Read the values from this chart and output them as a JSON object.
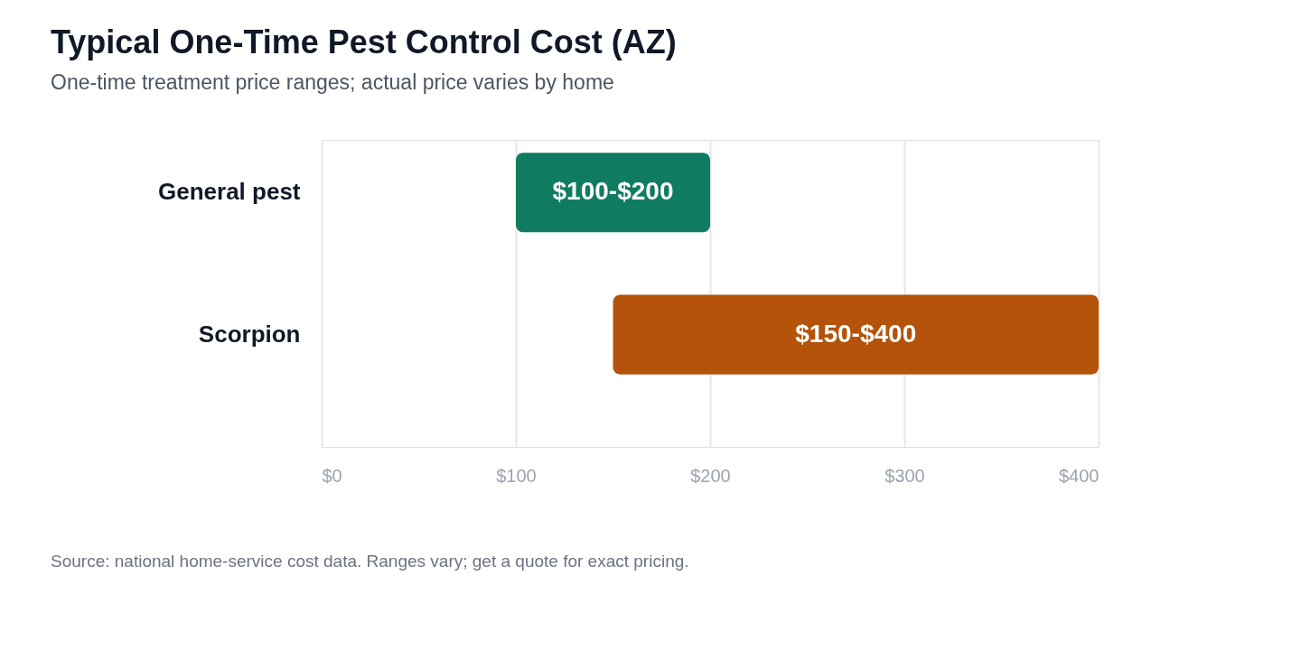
{
  "chart_data": {
    "type": "bar",
    "orientation": "horizontal",
    "title": "Typical One-Time Pest Control Cost (AZ)",
    "subtitle": "One-time treatment price ranges; actual price varies by home",
    "categories": [
      "General pest",
      "Scorpion"
    ],
    "base": [
      100,
      150
    ],
    "values": [
      100,
      250
    ],
    "colors": [
      "#0f7b61",
      "#b45309"
    ],
    "value_labels": [
      "$100-$200",
      "$150-$400"
    ],
    "xlim": [
      0,
      400
    ],
    "xticks": [
      {
        "value": 0,
        "label": "$0"
      },
      {
        "value": 100,
        "label": "$100"
      },
      {
        "value": 200,
        "label": "$200"
      },
      {
        "value": 300,
        "label": "$300"
      },
      {
        "value": 400,
        "label": "$400"
      }
    ],
    "grid": "x",
    "annotations": [
      "Source: national home-service cost data. Ranges vary; get a quote for exact pricing."
    ]
  }
}
